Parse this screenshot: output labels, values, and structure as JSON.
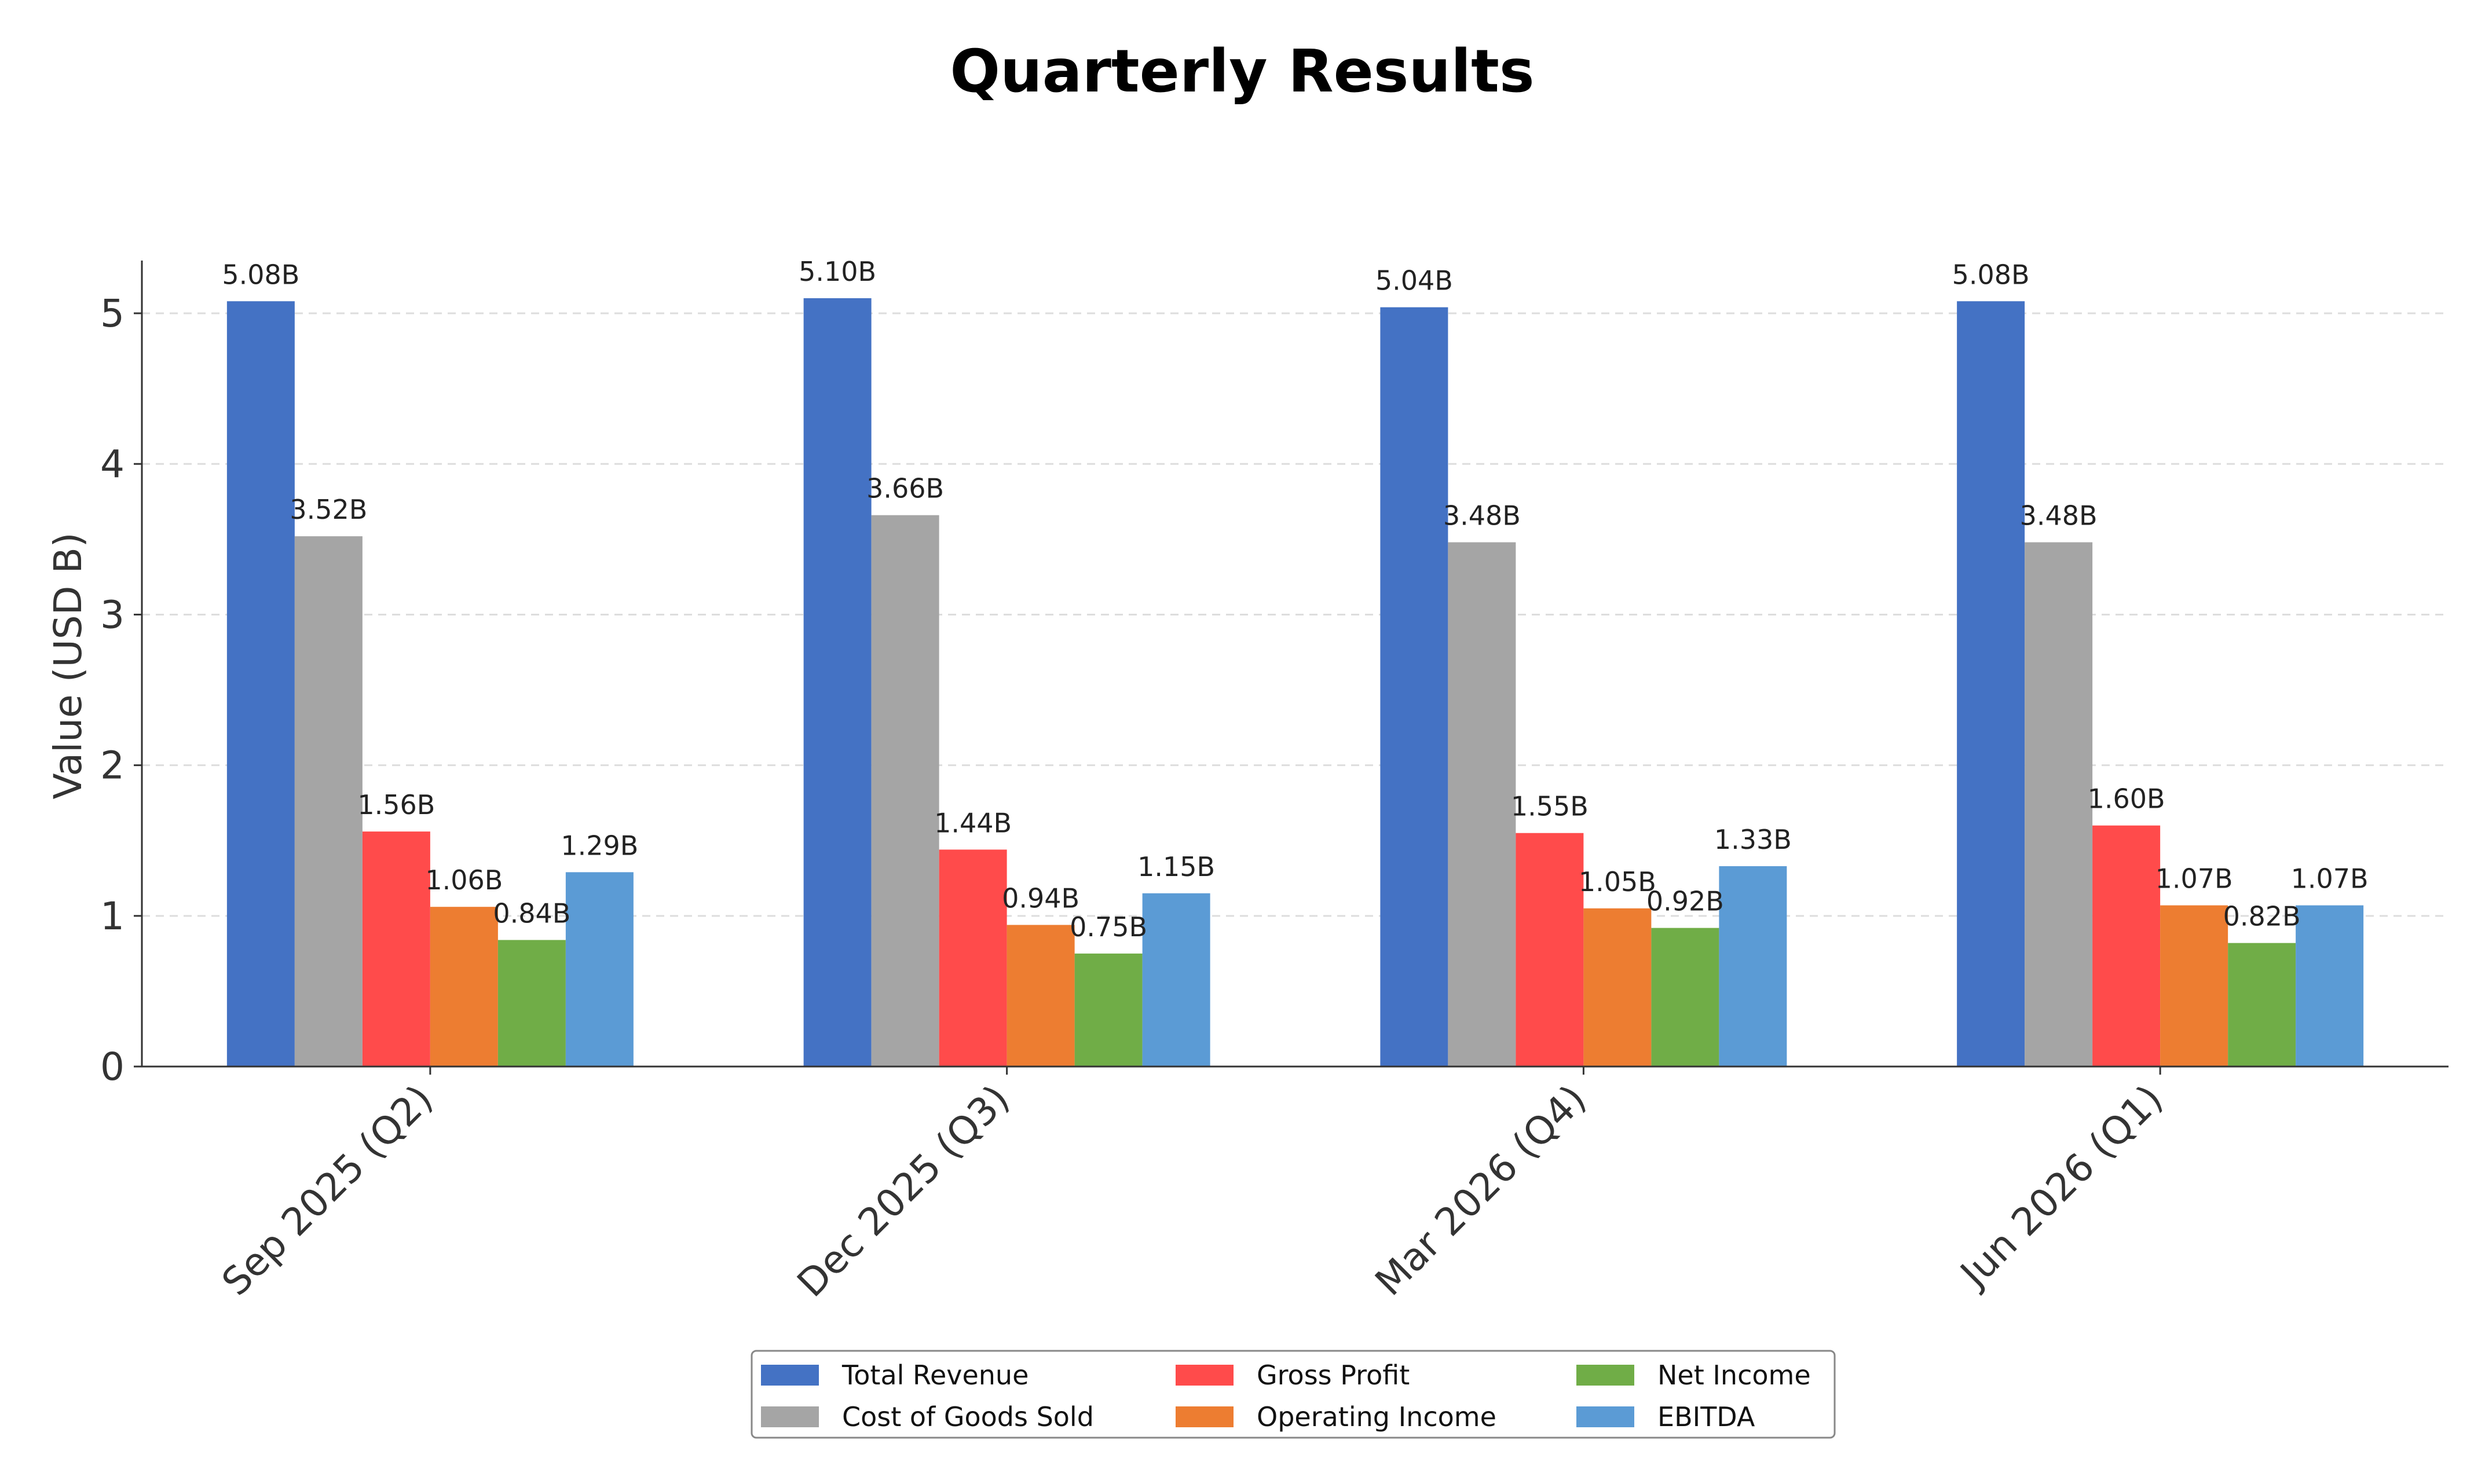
{
  "chart_data": {
    "type": "bar",
    "title": "Quarterly Results",
    "xlabel": "",
    "ylabel": "Value (USD B)",
    "ylim": [
      0,
      5.35
    ],
    "yticks": [
      "0",
      "1",
      "2",
      "3",
      "4",
      "5"
    ],
    "grid": "y-dashed",
    "legend_position": "bottom-center",
    "categories": [
      "Sep 2025 (Q2)",
      "Dec 2025 (Q3)",
      "Mar 2026 (Q4)",
      "Jun 2026 (Q1)"
    ],
    "series": [
      {
        "name": "Total Revenue",
        "color": "#4472C4",
        "values": [
          5.08,
          5.1,
          5.04,
          5.08
        ],
        "labels": [
          "5.08B",
          "5.10B",
          "5.04B",
          "5.08B"
        ]
      },
      {
        "name": "Cost of Goods Sold",
        "color": "#A5A5A5",
        "values": [
          3.52,
          3.66,
          3.48,
          3.48
        ],
        "labels": [
          "3.52B",
          "3.66B",
          "3.48B",
          "3.48B"
        ]
      },
      {
        "name": "Gross Profit",
        "color": "#FF4B4B",
        "values": [
          1.56,
          1.44,
          1.55,
          1.6
        ],
        "labels": [
          "1.56B",
          "1.44B",
          "1.55B",
          "1.60B"
        ]
      },
      {
        "name": "Operating Income",
        "color": "#ED7D31",
        "values": [
          1.06,
          0.94,
          1.05,
          1.07
        ],
        "labels": [
          "1.06B",
          "0.94B",
          "1.05B",
          "1.07B"
        ]
      },
      {
        "name": "Net Income",
        "color": "#70AD47",
        "values": [
          0.84,
          0.75,
          0.92,
          0.82
        ],
        "labels": [
          "0.84B",
          "0.75B",
          "0.92B",
          "0.82B"
        ]
      },
      {
        "name": "EBITDA",
        "color": "#5B9BD5",
        "values": [
          1.29,
          1.15,
          1.33,
          1.07
        ],
        "labels": [
          "1.29B",
          "1.15B",
          "1.33B",
          "1.07B"
        ]
      }
    ]
  }
}
